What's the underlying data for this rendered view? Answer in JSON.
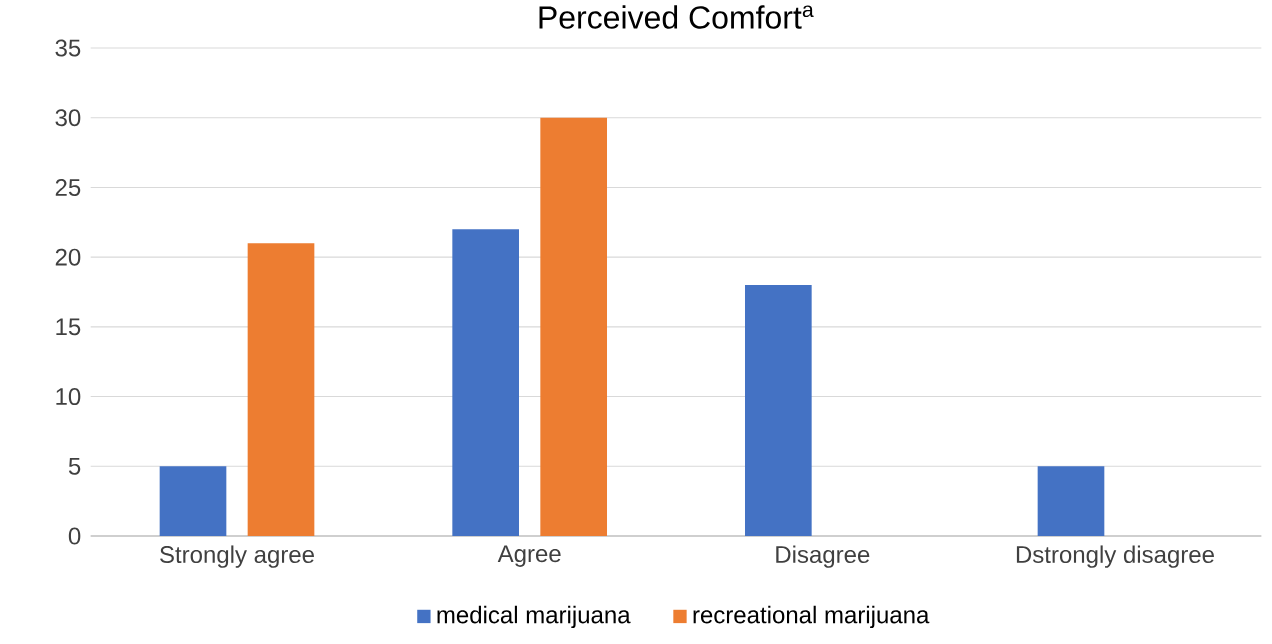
{
  "chart_data": {
    "type": "bar",
    "title": "Perceived Comfort$^{a}$",
    "categories": [
      "Strongly agree",
      "Agree",
      "Disagree",
      "Dstrongly disagree"
    ],
    "series": [
      {
        "name": "medical marijuana",
        "color": "#4472c4",
        "values": [
          5,
          22,
          18,
          5
        ]
      },
      {
        "name": "recreational marijuana",
        "color": "#ed7d31",
        "values": [
          21,
          30,
          0,
          0
        ]
      }
    ],
    "ylim": [
      0,
      35
    ],
    "yticks": [
      0,
      5,
      10,
      15,
      20,
      25,
      30,
      35
    ],
    "grid": "y",
    "legend": "bottom"
  }
}
